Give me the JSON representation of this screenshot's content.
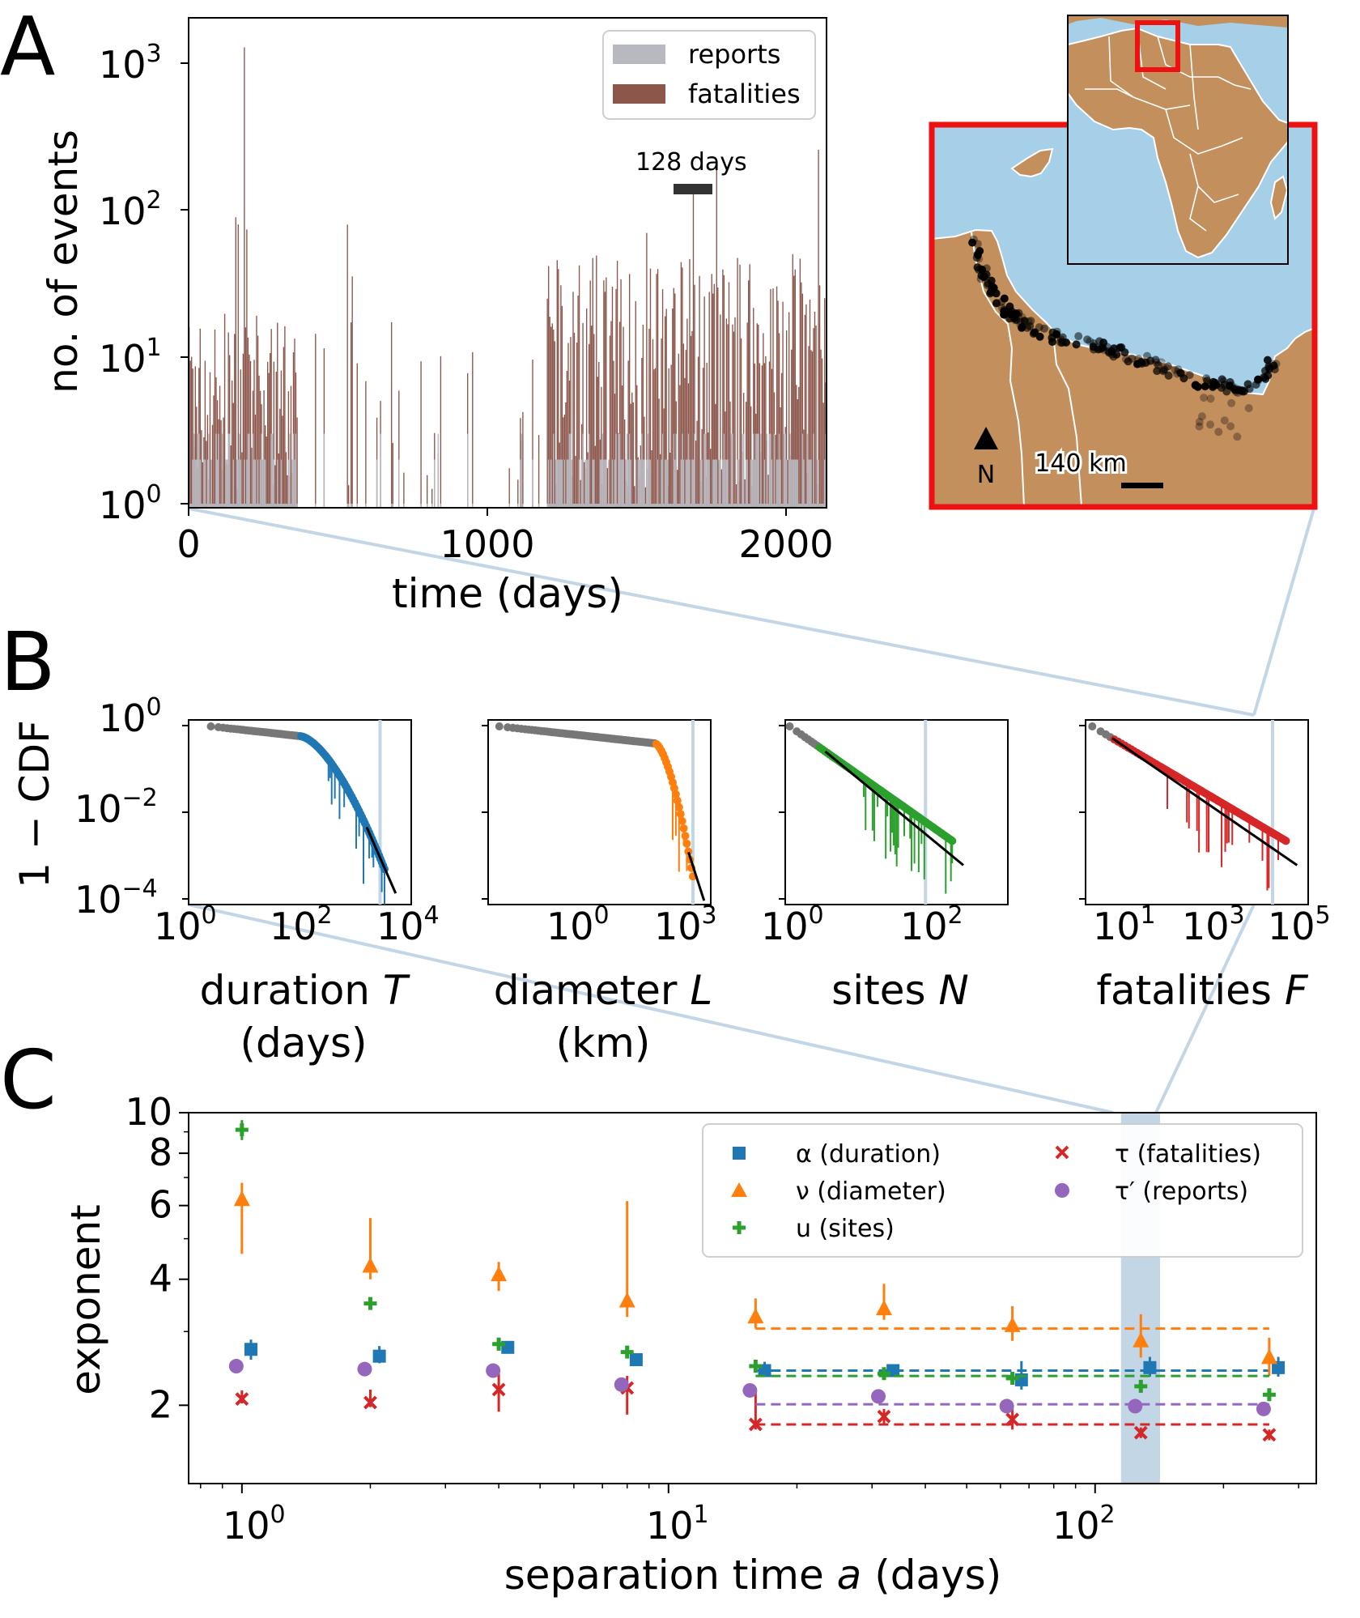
{
  "panels": {
    "a": "A",
    "b": "B",
    "c": "C"
  },
  "panel_a": {
    "ylabel": "no. of events",
    "xlabel": "time (days)",
    "legend": {
      "reports": "reports",
      "fatalities": "fatalities"
    },
    "scalebar_label": "128 days",
    "xticks": [
      "0",
      "1000",
      "2000"
    ],
    "yticks": [
      "10^0",
      "10^1",
      "10^2",
      "10^3"
    ],
    "colors": {
      "reports": "#b8b8c0",
      "fatalities": "#8c564b"
    }
  },
  "map": {
    "north_label": "N",
    "scale_label": "140 km",
    "colors": {
      "sea": "#a6cfe8",
      "land": "#c38f5d",
      "frame": "#ee1111"
    }
  },
  "panel_b": {
    "ylabel": "1 − CDF",
    "yticks": [
      "10^0",
      "10^-2",
      "10^-4"
    ],
    "subplots": [
      {
        "xlabel": "duration T",
        "xlabel2": "(days)",
        "color": "#1f77b4",
        "xticks": [
          "10^0",
          "10^2",
          "10^4"
        ]
      },
      {
        "xlabel": "diameter L",
        "xlabel2": "(km)",
        "color": "#ff7f0e",
        "xticks": [
          "10^0",
          "10^3"
        ]
      },
      {
        "xlabel": "sites N",
        "xlabel2": "",
        "color": "#2ca02c",
        "xticks": [
          "10^0",
          "10^2"
        ]
      },
      {
        "xlabel": "fatalities F",
        "xlabel2": "",
        "color": "#d62728",
        "xticks": [
          "10^1",
          "10^3",
          "10^5"
        ]
      }
    ]
  },
  "chart_data": {
    "type": "scatter",
    "title": "",
    "xlabel": "separation time a (days)",
    "ylabel": "exponent",
    "xscale": "log",
    "yscale": "log",
    "xlim": [
      0.75,
      330
    ],
    "ylim": [
      1.3,
      10
    ],
    "xticks": [
      "10^0",
      "10^1",
      "10^2"
    ],
    "yticks": [
      "2",
      "4",
      "6",
      "8",
      "10"
    ],
    "highlight_band": [
      115,
      142
    ],
    "x": [
      1,
      2,
      4,
      8,
      16,
      32,
      64,
      128,
      256
    ],
    "series": [
      {
        "name": "α (duration)",
        "marker": "square",
        "color": "#1f77b4",
        "values": [
          2.72,
          2.62,
          2.75,
          2.57,
          2.42,
          2.42,
          2.3,
          2.46,
          2.46
        ],
        "err_low": [
          0.15,
          0.1,
          0.05,
          0.03,
          0.08,
          0.05,
          0.12,
          0.12,
          0.12
        ],
        "err_high": [
          0.15,
          0.15,
          0.05,
          0.03,
          0.12,
          0.05,
          0.25,
          0.15,
          0.15
        ],
        "fit": 2.42
      },
      {
        "name": "ν (diameter)",
        "marker": "triangle",
        "color": "#ff7f0e",
        "values": [
          6.2,
          4.3,
          4.1,
          3.55,
          3.25,
          3.4,
          3.1,
          2.85,
          2.6
        ],
        "err_low": [
          1.6,
          0.3,
          0.35,
          0.3,
          0.2,
          0.2,
          0.25,
          0.25,
          0.25
        ],
        "err_high": [
          0.6,
          1.3,
          0.3,
          2.6,
          0.35,
          0.5,
          0.35,
          0.45,
          0.3
        ],
        "fit": 3.05
      },
      {
        "name": "u (sites)",
        "marker": "plus",
        "color": "#2ca02c",
        "values": [
          9.1,
          3.5,
          2.8,
          2.68,
          2.48,
          2.38,
          2.32,
          2.22,
          2.12
        ],
        "err_low": [
          0.5,
          0.1,
          0.1,
          0.08,
          0.08,
          0.06,
          0.06,
          0.06,
          0.06
        ],
        "err_high": [
          0.5,
          0.1,
          0.1,
          0.08,
          0.08,
          0.06,
          0.06,
          0.06,
          0.06
        ],
        "fit": 2.35
      },
      {
        "name": "τ (fatalities)",
        "marker": "x",
        "color": "#d62728",
        "values": [
          2.07,
          2.03,
          2.18,
          2.2,
          1.8,
          1.88,
          1.85,
          1.72,
          1.7
        ],
        "err_low": [
          0.05,
          0.05,
          0.25,
          0.3,
          0.05,
          0.08,
          0.1,
          0.05,
          0.05
        ],
        "err_high": [
          0.1,
          0.15,
          0.2,
          0.15,
          0.4,
          0.08,
          0.15,
          0.05,
          0.05
        ],
        "fit": 1.8
      },
      {
        "name": "τ′ (reports)",
        "marker": "circle",
        "color": "#9467bd",
        "values": [
          2.48,
          2.44,
          2.42,
          2.24,
          2.17,
          2.1,
          1.99,
          1.99,
          1.96
        ],
        "err_low": [
          0,
          0,
          0,
          0,
          0,
          0,
          0,
          0,
          0
        ],
        "err_high": [
          0,
          0,
          0,
          0,
          0,
          0,
          0,
          0,
          0
        ],
        "fit": 2.01
      }
    ],
    "legend_position": "top-right"
  }
}
